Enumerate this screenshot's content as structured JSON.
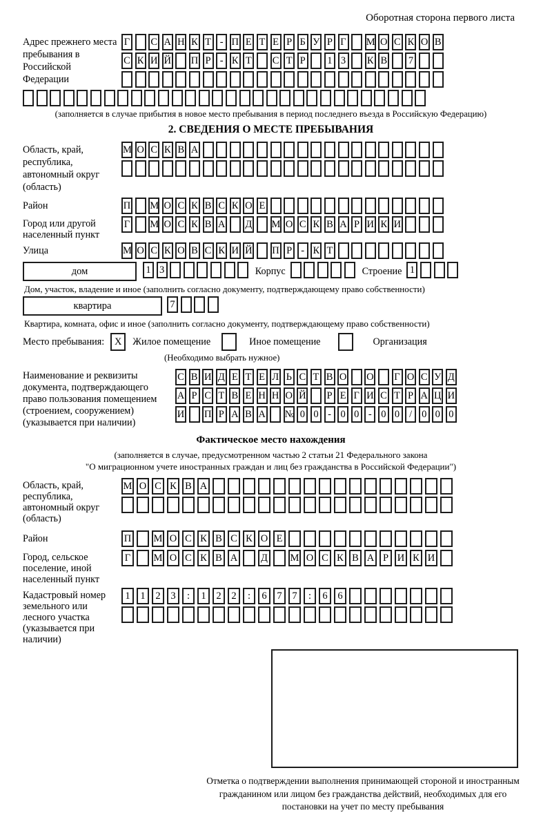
{
  "header": {
    "note": "Оборотная сторона первого листа"
  },
  "prev_address": {
    "label": "Адрес прежнего места пребывания в Российской Федерации",
    "row1": "Г САНКТ-ПЕТЕРБУРГ МОСКОВ",
    "row2": "СКИЙ ПР-КТ СТР 13 КВ 7  ",
    "row3": "                        ",
    "row4": "                              ",
    "note": "(заполняется в случае прибытия в новое место пребывания в период последнего въезда в Российскую Федерацию)"
  },
  "section2": {
    "title": "2. СВЕДЕНИЯ О МЕСТЕ ПРЕБЫВАНИЯ",
    "region_label": "Область, край, республика, автономный округ (область)",
    "region_row1": "МОСКВА                  ",
    "region_row2": "                        ",
    "district_label": "Район",
    "district_row": "П МОСКВСКОЕ             ",
    "city_label": "Город или другой населенный пункт",
    "city_row": "Г МОСКВА Д МОСКВАРИКИ   ",
    "street_label": "Улица",
    "street_row": "МОСКОВСКИЙ ПР-КТ        ",
    "house_box_label": "дом",
    "house_cells": "13      ",
    "korpus_label": "Корпус",
    "korpus_cells": "     ",
    "stroenie_label": "Строение",
    "stroenie_cells": "1   ",
    "house_note": "Дом, участок, владение и иное (заполнить согласно документу, подтверждающему право собственности)",
    "apt_box_label": "квартира",
    "apt_cells": "7   ",
    "apt_note": "Квартира, комната, офис и иное (заполнить согласно документу, подтверждающему право собственности)",
    "stay_label": "Место пребывания:",
    "stay_opt1_mark": "X",
    "stay_opt1": "Жилое помещение",
    "stay_opt2_mark": "",
    "stay_opt2": "Иное помещение",
    "stay_opt3_mark": "",
    "stay_opt3": "Организация",
    "stay_note": "(Необходимо выбрать нужное)",
    "doc_label": "Наименование и реквизиты документа, подтверждающего право пользования помещением (строением, сооружением) (указывается при наличии)",
    "doc_row1": "СВИДЕТЕЛЬСТВО О ГОСУД",
    "doc_row2": "АРСТВЕННОЙ РЕГИСТРАЦИ",
    "doc_row3": "И ПРАВА №00-00-00/000"
  },
  "actual": {
    "title": "Фактическое место нахождения",
    "note1": "(заполняется в случае, предусмотренном частью 2 статьи 21 Федерального закона",
    "note2": "\"О миграционном учете иностранных граждан и лиц без гражданства в Российской Федерации\")",
    "region_label": "Область, край, республика, автономный округ (область)",
    "region_row1": "МОСКВА                ",
    "region_row2": "                      ",
    "district_label": "Район",
    "district_row": "П МОСКВСКОЕ           ",
    "city_label": "Город, сельское поселение, иной населенный пункт",
    "city_row": "Г МОСКВА Д МОСКВАРИКИ ",
    "cadastre_label": "Кадастровый номер земельного или лесного участка (указывается при наличии)",
    "cadastre_row1": "1123:122:677:66       ",
    "cadastre_row2": "                      ",
    "stamp_caption": "Отметка о подтверждении выполнения принимающей стороной и иностранным гражданином или лицом без гражданства действий, необходимых для его постановки на учет по месту пребывания"
  }
}
